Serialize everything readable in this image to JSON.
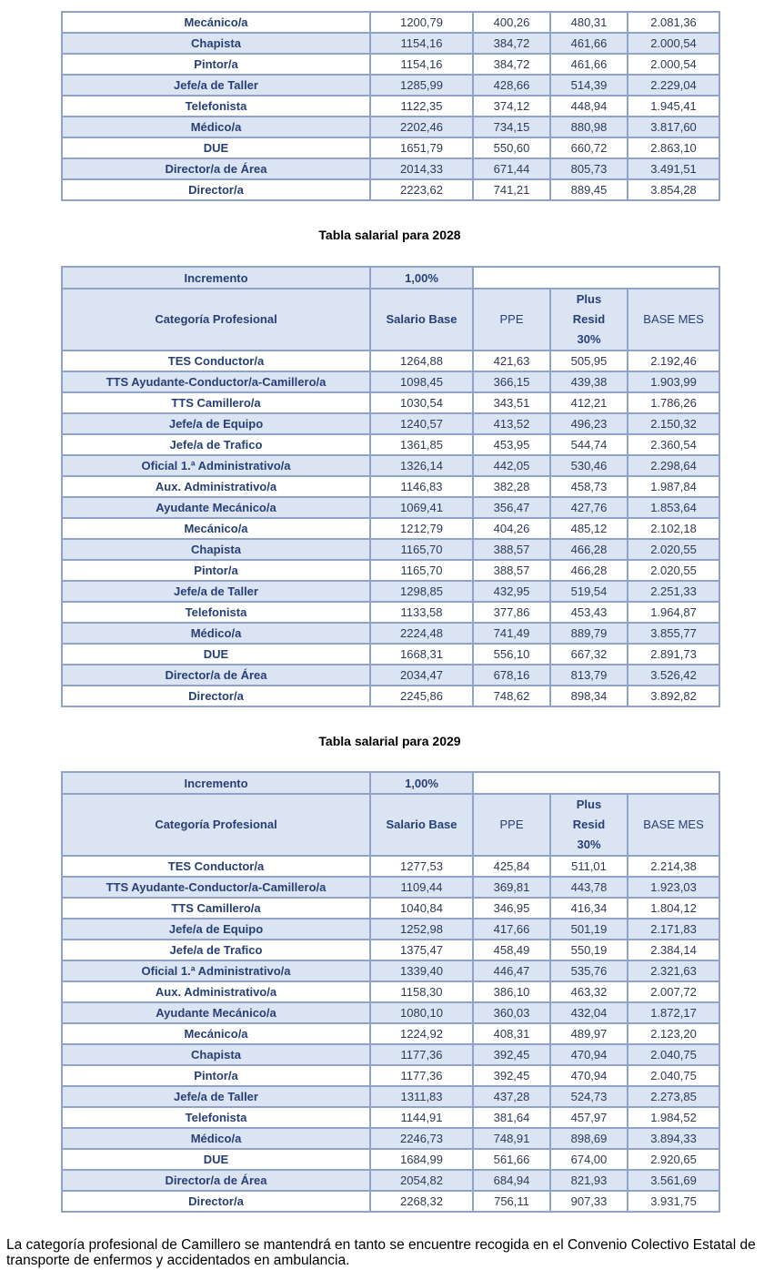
{
  "tables": [
    {
      "rows": [
        [
          "Mecánico/a",
          "1200,79",
          "400,26",
          "480,31",
          "2.081,36"
        ],
        [
          "Chapista",
          "1154,16",
          "384,72",
          "461,66",
          "2.000,54"
        ],
        [
          "Pintor/a",
          "1154,16",
          "384,72",
          "461,66",
          "2.000,54"
        ],
        [
          "Jefe/a de Taller",
          "1285,99",
          "428,66",
          "514,39",
          "2.229,04"
        ],
        [
          "Telefonista",
          "1122,35",
          "374,12",
          "448,94",
          "1.945,41"
        ],
        [
          "Médico/a",
          "2202,46",
          "734,15",
          "880,98",
          "3.817,60"
        ],
        [
          "DUE",
          "1651,79",
          "550,60",
          "660,72",
          "2.863,10"
        ],
        [
          "Director/a de Área",
          "2014,33",
          "671,44",
          "805,73",
          "3.491,51"
        ],
        [
          "Director/a",
          "2223,62",
          "741,21",
          "889,45",
          "3.854,28"
        ]
      ]
    },
    {
      "title": "Tabla salarial para 2028",
      "increment_label": "Incremento",
      "increment": "1,00%",
      "header": [
        "Categoría Profesional",
        "Salario Base",
        "PPE",
        "Plus Resid 30%",
        "BASE MES"
      ],
      "rows": [
        [
          "TES Conductor/a",
          "1264,88",
          "421,63",
          "505,95",
          "2.192,46"
        ],
        [
          "TTS Ayudante-Conductor/a-Camillero/a",
          "1098,45",
          "366,15",
          "439,38",
          "1.903,99"
        ],
        [
          "TTS Camillero/a",
          "1030,54",
          "343,51",
          "412,21",
          "1.786,26"
        ],
        [
          "Jefe/a de Equipo",
          "1240,57",
          "413,52",
          "496,23",
          "2.150,32"
        ],
        [
          "Jefe/a de Trafico",
          "1361,85",
          "453,95",
          "544,74",
          "2.360,54"
        ],
        [
          "Oficial 1.ª Administrativo/a",
          "1326,14",
          "442,05",
          "530,46",
          "2.298,64"
        ],
        [
          "Aux. Administrativo/a",
          "1146,83",
          "382,28",
          "458,73",
          "1.987,84"
        ],
        [
          "Ayudante Mecánico/a",
          "1069,41",
          "356,47",
          "427,76",
          "1.853,64"
        ],
        [
          "Mecánico/a",
          "1212,79",
          "404,26",
          "485,12",
          "2.102,18"
        ],
        [
          "Chapista",
          "1165,70",
          "388,57",
          "466,28",
          "2.020,55"
        ],
        [
          "Pintor/a",
          "1165,70",
          "388,57",
          "466,28",
          "2.020,55"
        ],
        [
          "Jefe/a de Taller",
          "1298,85",
          "432,95",
          "519,54",
          "2.251,33"
        ],
        [
          "Telefonista",
          "1133,58",
          "377,86",
          "453,43",
          "1.964,87"
        ],
        [
          "Médico/a",
          "2224,48",
          "741,49",
          "889,79",
          "3.855,77"
        ],
        [
          "DUE",
          "1668,31",
          "556,10",
          "667,32",
          "2.891,73"
        ],
        [
          "Director/a de Área",
          "2034,47",
          "678,16",
          "813,79",
          "3.526,42"
        ],
        [
          "Director/a",
          "2245,86",
          "748,62",
          "898,34",
          "3.892,82"
        ]
      ]
    },
    {
      "title": "Tabla salarial para 2029",
      "increment_label": "Incremento",
      "increment": "1,00%",
      "header": [
        "Categoría Profesional",
        "Salario Base",
        "PPE",
        "Plus Resid 30%",
        "BASE MES"
      ],
      "rows": [
        [
          "TES Conductor/a",
          "1277,53",
          "425,84",
          "511,01",
          "2.214,38"
        ],
        [
          "TTS Ayudante-Conductor/a-Camillero/a",
          "1109,44",
          "369,81",
          "443,78",
          "1.923,03"
        ],
        [
          "TTS Camillero/a",
          "1040,84",
          "346,95",
          "416,34",
          "1.804,12"
        ],
        [
          "Jefe/a de Equipo",
          "1252,98",
          "417,66",
          "501,19",
          "2.171,83"
        ],
        [
          "Jefe/a de Trafico",
          "1375,47",
          "458,49",
          "550,19",
          "2.384,14"
        ],
        [
          "Oficial 1.ª Administrativo/a",
          "1339,40",
          "446,47",
          "535,76",
          "2.321,63"
        ],
        [
          "Aux. Administrativo/a",
          "1158,30",
          "386,10",
          "463,32",
          "2.007,72"
        ],
        [
          "Ayudante Mecánico/a",
          "1080,10",
          "360,03",
          "432,04",
          "1.872,17"
        ],
        [
          "Mecánico/a",
          "1224,92",
          "408,31",
          "489,97",
          "2.123,20"
        ],
        [
          "Chapista",
          "1177,36",
          "392,45",
          "470,94",
          "2.040,75"
        ],
        [
          "Pintor/a",
          "1177,36",
          "392,45",
          "470,94",
          "2.040,75"
        ],
        [
          "Jefe/a de Taller",
          "1311,83",
          "437,28",
          "524,73",
          "2.273,85"
        ],
        [
          "Telefonista",
          "1144,91",
          "381,64",
          "457,97",
          "1.984,52"
        ],
        [
          "Médico/a",
          "2246,73",
          "748,91",
          "898,69",
          "3.894,33"
        ],
        [
          "DUE",
          "1684,99",
          "561,66",
          "674,00",
          "2.920,65"
        ],
        [
          "Director/a de Área",
          "2054,82",
          "684,94",
          "821,93",
          "3.561,69"
        ],
        [
          "Director/a",
          "2268,32",
          "756,11",
          "907,33",
          "3.931,75"
        ]
      ]
    }
  ],
  "footer": "La categoría profesional de Camillero se mantendrá en tanto se encuentre recogida en el Convenio Colectivo Estatal de transporte de enfermos y accidentados en ambulancia."
}
